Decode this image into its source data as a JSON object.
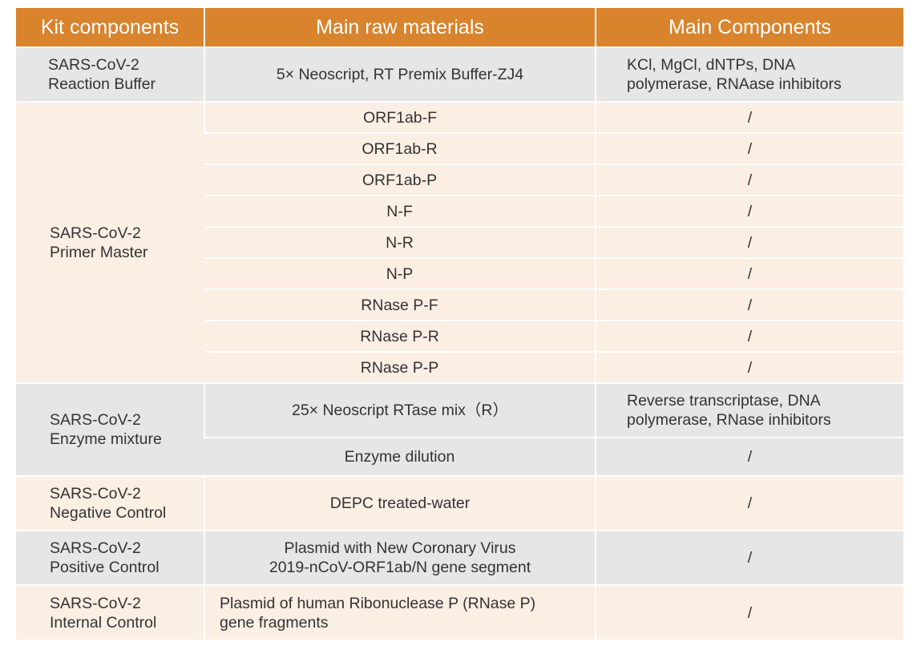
{
  "header": {
    "col1": "Kit components",
    "col2": "Main raw materials",
    "col3": "Main Components"
  },
  "reaction_buffer": {
    "component": [
      "SARS-CoV-2",
      "Reaction Buffer"
    ],
    "material": "5× Neoscript, RT Premix Buffer-ZJ4",
    "main": [
      "KCl, MgCl, dNTPs, DNA",
      "polymerase, RNAase inhibitors"
    ]
  },
  "primer_master": {
    "component": [
      "SARS-CoV-2",
      "Primer Master"
    ],
    "rows": [
      {
        "material": "ORF1ab-F",
        "main": "/"
      },
      {
        "material": "ORF1ab-R",
        "main": "/"
      },
      {
        "material": "ORF1ab-P",
        "main": "/"
      },
      {
        "material": "N-F",
        "main": "/"
      },
      {
        "material": "N-R",
        "main": "/"
      },
      {
        "material": "N-P",
        "main": "/"
      },
      {
        "material": "RNase P-F",
        "main": "/"
      },
      {
        "material": "RNase P-R",
        "main": "/"
      },
      {
        "material": "RNase P-P",
        "main": "/"
      }
    ]
  },
  "enzyme_mixture": {
    "component": [
      "SARS-CoV-2",
      "Enzyme mixture"
    ],
    "rows": [
      {
        "material": "25× Neoscript RTase mix（R）",
        "main": [
          "Reverse transcriptase, DNA",
          "polymerase, RNase inhibitors"
        ]
      },
      {
        "material": "Enzyme dilution",
        "main": "/"
      }
    ]
  },
  "negative_control": {
    "component": [
      "SARS-CoV-2",
      "Negative Control"
    ],
    "material": "DEPC treated-water",
    "main": "/"
  },
  "positive_control": {
    "component": [
      "SARS-CoV-2",
      "Positive Control"
    ],
    "material": [
      "Plasmid with New Coronary  Virus",
      "2019-nCoV-ORF1ab/N gene segment"
    ],
    "main": "/"
  },
  "internal_control": {
    "component": [
      "SARS-CoV-2",
      "Internal Control"
    ],
    "material": [
      "Plasmid of human Ribonuclease P (RNase P)",
      "gene fragments"
    ],
    "main": "/"
  },
  "colors": {
    "header_bg": "#d9832c",
    "header_text": "#ffffff",
    "grey_row": "#e6e6e6",
    "tan_row": "#fbeee3"
  }
}
